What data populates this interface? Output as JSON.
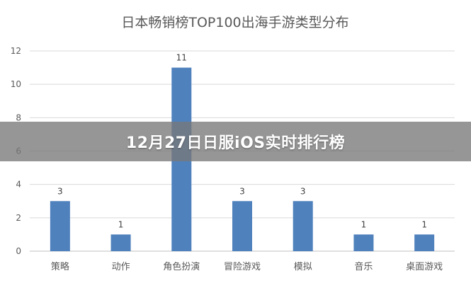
{
  "banner": {
    "text": "12月27日日服iOS实时排行榜"
  },
  "colors": {
    "bar": "#4f81bd",
    "grid": "#d9d9d9",
    "axis": "#bfbfbf",
    "text": "#595959"
  },
  "chart_data": {
    "type": "bar",
    "title": "日本畅销榜TOP100出海手游类型分布",
    "categories": [
      "策略",
      "动作",
      "角色扮演",
      "冒险游戏",
      "模拟",
      "音乐",
      "桌面游戏"
    ],
    "values": [
      3,
      1,
      11,
      3,
      3,
      1,
      1
    ],
    "data_labels": [
      "3",
      "1",
      "11",
      "3",
      "3",
      "1",
      "1"
    ],
    "yticks": [
      0,
      2,
      4,
      6,
      8,
      10,
      12
    ],
    "ylim": [
      0,
      12
    ],
    "grid": true,
    "legend": "none"
  }
}
